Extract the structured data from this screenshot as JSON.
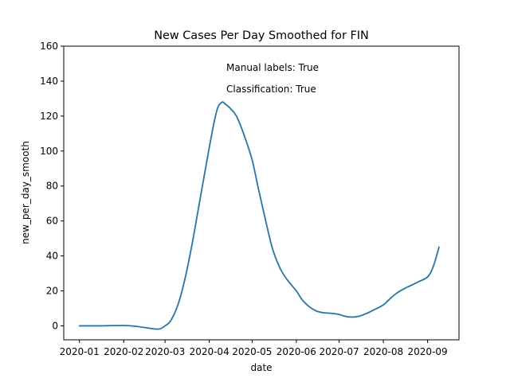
{
  "chart_data": {
    "type": "line",
    "title": "New Cases Per Day Smoothed for FIN",
    "xlabel": "date",
    "ylabel": "new_per_day_smooth",
    "ylim": [
      -8,
      160
    ],
    "xlim": [
      "2019-12-21",
      "2020-09-23"
    ],
    "grid": false,
    "annotations": [
      "Manual labels: True",
      "Classification: True"
    ],
    "x_ticks": [
      {
        "date": "2020-01-01",
        "label": "2020-01"
      },
      {
        "date": "2020-02-01",
        "label": "2020-02"
      },
      {
        "date": "2020-03-01",
        "label": "2020-03"
      },
      {
        "date": "2020-04-01",
        "label": "2020-04"
      },
      {
        "date": "2020-05-01",
        "label": "2020-05"
      },
      {
        "date": "2020-06-01",
        "label": "2020-06"
      },
      {
        "date": "2020-07-01",
        "label": "2020-07"
      },
      {
        "date": "2020-08-01",
        "label": "2020-08"
      },
      {
        "date": "2020-09-01",
        "label": "2020-09"
      }
    ],
    "y_ticks": [
      0,
      20,
      40,
      60,
      80,
      100,
      120,
      140,
      160
    ],
    "line_color": "#1f77b4",
    "series": [
      {
        "x": [
          "2020-01-01",
          "2020-01-15",
          "2020-02-01",
          "2020-02-10",
          "2020-02-20",
          "2020-02-26",
          "2020-03-01",
          "2020-03-05",
          "2020-03-10",
          "2020-03-15",
          "2020-03-20",
          "2020-03-25",
          "2020-03-30",
          "2020-04-04",
          "2020-04-07",
          "2020-04-10",
          "2020-04-12",
          "2020-04-15",
          "2020-04-20",
          "2020-04-25",
          "2020-05-01",
          "2020-05-05",
          "2020-05-10",
          "2020-05-15",
          "2020-05-20",
          "2020-05-25",
          "2020-06-01",
          "2020-06-05",
          "2020-06-10",
          "2020-06-15",
          "2020-06-20",
          "2020-06-25",
          "2020-07-01",
          "2020-07-05",
          "2020-07-10",
          "2020-07-15",
          "2020-07-20",
          "2020-07-25",
          "2020-08-01",
          "2020-08-05",
          "2020-08-10",
          "2020-08-15",
          "2020-08-20",
          "2020-08-25",
          "2020-09-01",
          "2020-09-05",
          "2020-09-09"
        ],
        "y": [
          0,
          0,
          0.2,
          -0.3,
          -1.5,
          -1.8,
          0,
          3,
          12,
          27,
          47,
          70,
          93,
          115,
          125,
          128,
          127,
          125,
          120,
          110,
          95,
          80,
          62,
          45,
          34,
          27,
          20,
          15,
          11,
          8.5,
          7.5,
          7.2,
          6.5,
          5.5,
          5,
          5.5,
          7,
          9,
          12,
          15,
          18.5,
          21,
          23,
          25,
          28,
          34,
          45
        ]
      }
    ]
  }
}
